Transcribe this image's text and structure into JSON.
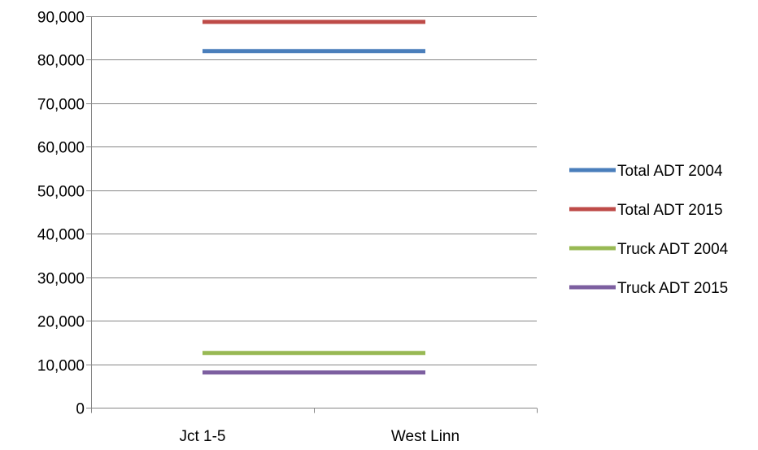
{
  "chart_data": {
    "type": "line",
    "title": "",
    "xlabel": "",
    "ylabel": "",
    "categories": [
      "Jct 1-5",
      "West Linn"
    ],
    "ylim": [
      0,
      90000
    ],
    "yticks": [
      0,
      10000,
      20000,
      30000,
      40000,
      50000,
      60000,
      70000,
      80000,
      90000
    ],
    "ytick_labels": [
      "0",
      "10,000",
      "20,000",
      "30,000",
      "40,000",
      "50,000",
      "60,000",
      "70,000",
      "80,000",
      "90,000"
    ],
    "grid": true,
    "legend_position": "right",
    "series": [
      {
        "name": "Total ADT 2004",
        "values": [
          82000,
          82000
        ],
        "color": "#4a7ebb"
      },
      {
        "name": "Total ADT 2015",
        "values": [
          88700,
          88700
        ],
        "color": "#be4b48"
      },
      {
        "name": "Truck ADT 2004",
        "values": [
          12600,
          12600
        ],
        "color": "#98b954"
      },
      {
        "name": "Truck ADT 2015",
        "values": [
          8100,
          8100
        ],
        "color": "#7d5fa0"
      }
    ]
  }
}
